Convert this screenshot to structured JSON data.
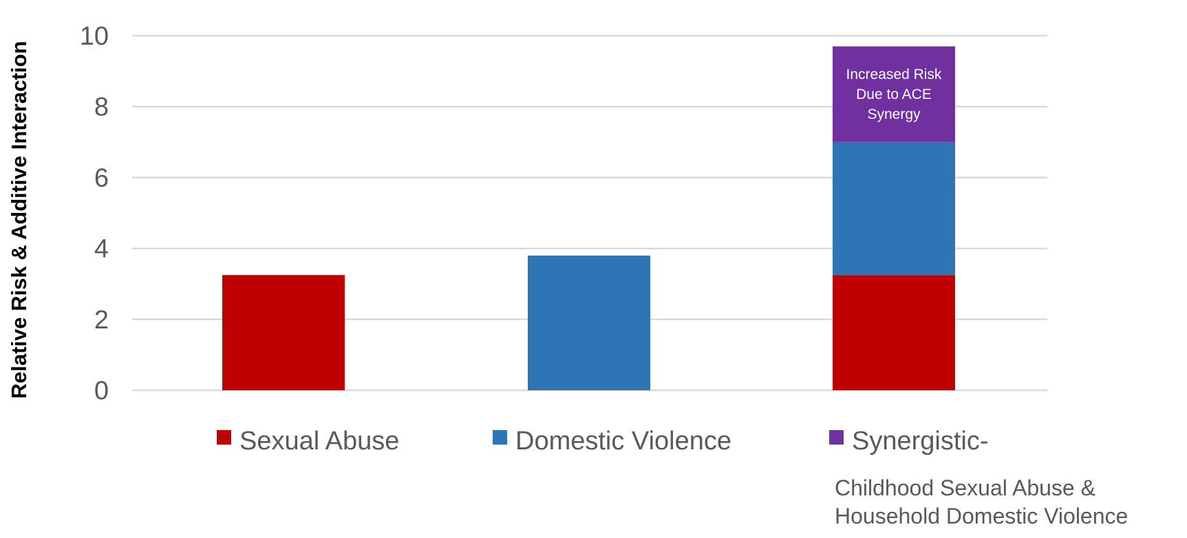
{
  "chart_data": {
    "type": "bar",
    "stacked": true,
    "ylabel": "Relative Risk & Additive Interaction",
    "ylim": [
      0,
      10
    ],
    "yticks": [
      0,
      2,
      4,
      6,
      8,
      10
    ],
    "grid": true,
    "legend_position": "bottom",
    "categories": [
      "",
      "",
      "Childhood Sexual Abuse & Household Domestic Violence"
    ],
    "category_label_lines": [
      [],
      [],
      [
        "Childhood Sexual Abuse &",
        "Household Domestic Violence"
      ]
    ],
    "series": [
      {
        "name": "Sexual Abuse",
        "color": "#C00000",
        "values": [
          3.25,
          0,
          3.25
        ]
      },
      {
        "name": "Domestic Violence",
        "color": "#2E75B6",
        "values": [
          0,
          3.8,
          3.75
        ]
      },
      {
        "name": "Synergistic-",
        "color": "#7030A0",
        "values": [
          0,
          0,
          2.7
        ]
      }
    ],
    "annotation": {
      "lines": [
        "Increased Risk",
        "Due to ACE",
        "Synergy"
      ],
      "category_index": 2,
      "series_index": 2
    }
  }
}
